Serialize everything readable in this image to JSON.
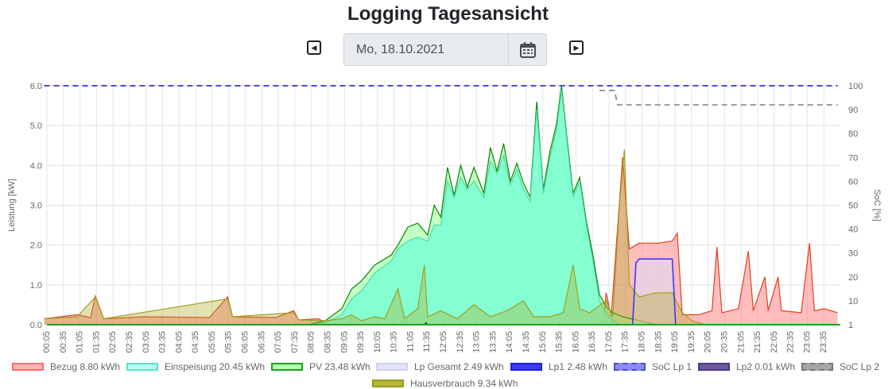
{
  "page": {
    "title": "Logging Tagesansicht",
    "date": "Mo, 18.10.2021",
    "prev_icon": "caret-left-square-icon",
    "next_icon": "caret-right-square-icon",
    "calendar_icon": "calendar-icon"
  },
  "chart_data": {
    "type": "area",
    "y_left_label": "Leistung [kW]",
    "y_right_label": "SoC [%]",
    "y_left_ticks": [
      "0.0",
      "1.0",
      "2.0",
      "3.0",
      "4.0",
      "5.0",
      "6.0"
    ],
    "y_left_range": [
      0,
      6
    ],
    "y_right_ticks": [
      "1",
      "10",
      "20",
      "30",
      "40",
      "50",
      "60",
      "70",
      "80",
      "90",
      "100"
    ],
    "y_right_range": [
      0,
      100
    ],
    "x_tick_labels": [
      "00:05",
      "00:35",
      "01:05",
      "01:35",
      "02:05",
      "02:35",
      "03:05",
      "03:35",
      "04:05",
      "04:35",
      "05:05",
      "05:35",
      "06:05",
      "06:35",
      "07:05",
      "07:35",
      "08:05",
      "08:35",
      "09:05",
      "09:35",
      "10:05",
      "10:35",
      "11:05",
      "11:35",
      "12:05",
      "12:35",
      "13:05",
      "13:35",
      "14:05",
      "14:35",
      "15:05",
      "15:35",
      "16:05",
      "16:35",
      "17:05",
      "17:35",
      "18:05",
      "18:35",
      "19:05",
      "19:35",
      "20:05",
      "20:35",
      "21:05",
      "21:35",
      "22:05",
      "22:35",
      "23:05",
      "23:35"
    ],
    "grid": true,
    "legend_position": "bottom",
    "series": [
      {
        "name": "Bezug 8.80 kWh",
        "color": "#ff6b6b",
        "kind": "area",
        "axis": "left",
        "points": [
          [
            0,
            0.15
          ],
          [
            1,
            0.25
          ],
          [
            1.4,
            0.18
          ],
          [
            1.55,
            0.72
          ],
          [
            1.8,
            0.15
          ],
          [
            3,
            0.2
          ],
          [
            5,
            0.18
          ],
          [
            5.55,
            0.7
          ],
          [
            5.7,
            0.2
          ],
          [
            7,
            0.18
          ],
          [
            7.55,
            0.35
          ],
          [
            7.7,
            0.12
          ],
          [
            8.3,
            0.15
          ],
          [
            8.6,
            0.0
          ],
          [
            9.2,
            0.0
          ],
          [
            9.3,
            0.25
          ],
          [
            9.4,
            0.0
          ],
          [
            10.8,
            0.0
          ],
          [
            10.9,
            0.35
          ],
          [
            11,
            0.0
          ],
          [
            16.9,
            0.0
          ],
          [
            17.0,
            0.8
          ],
          [
            17.15,
            0.2
          ],
          [
            17.5,
            4.2
          ],
          [
            17.7,
            1.9
          ],
          [
            18.0,
            2.05
          ],
          [
            18.6,
            2.05
          ],
          [
            19.0,
            2.1
          ],
          [
            19.15,
            2.3
          ],
          [
            19.3,
            0.25
          ],
          [
            19.8,
            0.25
          ],
          [
            20.0,
            0.3
          ],
          [
            20.2,
            0.35
          ],
          [
            20.35,
            1.95
          ],
          [
            20.5,
            0.3
          ],
          [
            21.0,
            0.4
          ],
          [
            21.3,
            1.85
          ],
          [
            21.45,
            0.35
          ],
          [
            21.8,
            1.2
          ],
          [
            21.9,
            0.35
          ],
          [
            22.2,
            1.2
          ],
          [
            22.3,
            0.35
          ],
          [
            22.9,
            0.3
          ],
          [
            23.15,
            2.05
          ],
          [
            23.3,
            0.35
          ],
          [
            23.6,
            0.4
          ],
          [
            24,
            0.3
          ]
        ]
      },
      {
        "name": "Einspeisung 20.45 kWh",
        "color": "#7fffd4",
        "kind": "area",
        "axis": "left",
        "points": [
          [
            8.0,
            0.0
          ],
          [
            8.5,
            0.05
          ],
          [
            9.0,
            0.25
          ],
          [
            9.3,
            0.65
          ],
          [
            9.6,
            0.85
          ],
          [
            10.0,
            1.3
          ],
          [
            10.5,
            1.6
          ],
          [
            10.7,
            1.9
          ],
          [
            11.0,
            2.1
          ],
          [
            11.3,
            2.2
          ],
          [
            11.6,
            2.1
          ],
          [
            11.8,
            2.5
          ],
          [
            12.0,
            2.5
          ],
          [
            12.2,
            3.6
          ],
          [
            12.4,
            3.2
          ],
          [
            12.6,
            3.7
          ],
          [
            12.8,
            3.4
          ],
          [
            13.0,
            3.6
          ],
          [
            13.3,
            3.2
          ],
          [
            13.5,
            4.1
          ],
          [
            13.7,
            3.8
          ],
          [
            13.9,
            4.25
          ],
          [
            14.1,
            3.5
          ],
          [
            14.3,
            3.9
          ],
          [
            14.5,
            3.4
          ],
          [
            14.7,
            3.1
          ],
          [
            14.9,
            5.4
          ],
          [
            15.0,
            4.4
          ],
          [
            15.1,
            3.3
          ],
          [
            15.3,
            4.2
          ],
          [
            15.5,
            4.9
          ],
          [
            15.65,
            5.9
          ],
          [
            15.8,
            4.7
          ],
          [
            16.0,
            3.2
          ],
          [
            16.2,
            3.6
          ],
          [
            16.4,
            2.5
          ],
          [
            16.6,
            1.6
          ],
          [
            16.8,
            0.6
          ],
          [
            17.0,
            0.3
          ],
          [
            17.2,
            0.1
          ],
          [
            17.4,
            0.0
          ]
        ]
      },
      {
        "name": "PV 23.48 kWh",
        "color": "#00a000",
        "kind": "area",
        "axis": "left",
        "points": [
          [
            8.0,
            0.0
          ],
          [
            8.5,
            0.1
          ],
          [
            9.0,
            0.4
          ],
          [
            9.3,
            0.9
          ],
          [
            9.6,
            1.1
          ],
          [
            10.0,
            1.5
          ],
          [
            10.5,
            1.75
          ],
          [
            10.7,
            2.0
          ],
          [
            11.0,
            2.45
          ],
          [
            11.3,
            2.55
          ],
          [
            11.6,
            2.25
          ],
          [
            11.8,
            3.0
          ],
          [
            12.0,
            2.7
          ],
          [
            12.2,
            3.95
          ],
          [
            12.4,
            3.25
          ],
          [
            12.6,
            4.0
          ],
          [
            12.8,
            3.45
          ],
          [
            13.0,
            3.95
          ],
          [
            13.3,
            3.3
          ],
          [
            13.5,
            4.45
          ],
          [
            13.7,
            3.85
          ],
          [
            13.9,
            4.55
          ],
          [
            14.1,
            3.6
          ],
          [
            14.3,
            4.05
          ],
          [
            14.5,
            3.55
          ],
          [
            14.7,
            3.2
          ],
          [
            14.9,
            5.6
          ],
          [
            15.0,
            4.5
          ],
          [
            15.1,
            3.4
          ],
          [
            15.3,
            4.35
          ],
          [
            15.5,
            5.05
          ],
          [
            15.65,
            6.0
          ],
          [
            15.8,
            4.8
          ],
          [
            16.0,
            3.3
          ],
          [
            16.2,
            3.7
          ],
          [
            16.4,
            2.6
          ],
          [
            16.6,
            1.75
          ],
          [
            16.8,
            0.75
          ],
          [
            17.0,
            0.45
          ],
          [
            17.2,
            0.3
          ],
          [
            17.5,
            0.2
          ],
          [
            18.0,
            0.1
          ],
          [
            18.5,
            0.0
          ]
        ]
      },
      {
        "name": "Lp Gesamt 2.49 kWh",
        "color": "#dcdcf5",
        "kind": "area",
        "axis": "left",
        "points": [
          [
            17.8,
            0.0
          ],
          [
            17.9,
            1.55
          ],
          [
            18.0,
            1.65
          ],
          [
            18.6,
            1.65
          ],
          [
            19.0,
            1.65
          ],
          [
            19.1,
            0.0
          ]
        ]
      },
      {
        "name": "Lp1 2.48 kWh",
        "color": "#0000ff",
        "kind": "line",
        "axis": "left",
        "points": [
          [
            17.8,
            0.0
          ],
          [
            17.9,
            1.55
          ],
          [
            18.0,
            1.65
          ],
          [
            18.6,
            1.65
          ],
          [
            19.0,
            1.65
          ],
          [
            19.1,
            0.0
          ]
        ]
      },
      {
        "name": "SoC Lp 1",
        "color": "#4b4bd8",
        "kind": "dashed",
        "axis": "right",
        "points": [
          [
            0,
            100
          ],
          [
            24,
            100
          ]
        ]
      },
      {
        "name": "Lp2 0.01 kWh",
        "color": "#4b3a80",
        "kind": "line",
        "axis": "left",
        "points": [
          [
            11.5,
            0.0
          ],
          [
            11.55,
            0.05
          ],
          [
            11.6,
            0.0
          ]
        ]
      },
      {
        "name": "SoC Lp 2",
        "color": "#999999",
        "kind": "dashed",
        "axis": "right",
        "points": [
          [
            16.8,
            98
          ],
          [
            17.25,
            98
          ],
          [
            17.35,
            92
          ],
          [
            24,
            92
          ]
        ]
      },
      {
        "name": "Hausverbrauch 9.34 kWh",
        "color": "#a0a020",
        "kind": "area",
        "axis": "left",
        "points": [
          [
            0,
            0.15
          ],
          [
            1,
            0.2
          ],
          [
            1.55,
            0.7
          ],
          [
            1.8,
            0.15
          ],
          [
            5.55,
            0.65
          ],
          [
            5.7,
            0.2
          ],
          [
            7.55,
            0.3
          ],
          [
            7.7,
            0.12
          ],
          [
            8.5,
            0.1
          ],
          [
            9.0,
            0.15
          ],
          [
            9.3,
            0.25
          ],
          [
            9.6,
            0.1
          ],
          [
            10.0,
            0.2
          ],
          [
            10.3,
            0.15
          ],
          [
            10.7,
            0.9
          ],
          [
            10.9,
            0.15
          ],
          [
            11.3,
            0.4
          ],
          [
            11.5,
            1.5
          ],
          [
            11.6,
            0.2
          ],
          [
            12.0,
            0.35
          ],
          [
            12.5,
            0.15
          ],
          [
            13.0,
            0.5
          ],
          [
            13.5,
            0.2
          ],
          [
            14.0,
            0.35
          ],
          [
            14.5,
            0.6
          ],
          [
            14.8,
            0.2
          ],
          [
            15.3,
            0.2
          ],
          [
            15.7,
            0.3
          ],
          [
            16.0,
            1.5
          ],
          [
            16.2,
            0.4
          ],
          [
            16.5,
            0.3
          ],
          [
            17.0,
            0.6
          ],
          [
            17.2,
            0.2
          ],
          [
            17.4,
            3.0
          ],
          [
            17.55,
            4.4
          ],
          [
            17.7,
            1.0
          ],
          [
            18.0,
            0.7
          ],
          [
            18.5,
            0.8
          ],
          [
            19.0,
            0.8
          ],
          [
            19.3,
            0.3
          ],
          [
            19.6,
            0.1
          ],
          [
            20,
            0.0
          ]
        ]
      }
    ]
  },
  "legend": [
    {
      "label": "Bezug 8.80 kWh",
      "fill": "#ffb3b3",
      "border": "#ff6b6b",
      "style": "solid"
    },
    {
      "label": "Einspeisung 20.45 kWh",
      "fill": "#b3fff0",
      "border": "#5fe0c8",
      "style": "solid"
    },
    {
      "label": "PV 23.48 kWh",
      "fill": "#b3ffb3",
      "border": "#20a020",
      "style": "solid"
    },
    {
      "label": "Lp Gesamt 2.49 kWh",
      "fill": "#e4e4f7",
      "border": "#cfcfee",
      "style": "solid"
    },
    {
      "label": "Lp1 2.48 kWh",
      "fill": "#3a3aff",
      "border": "#2020e0",
      "style": "solid"
    },
    {
      "label": "SoC Lp 1",
      "fill": "#8c8cf5",
      "border": "#4b4bd8",
      "style": "dashed"
    },
    {
      "label": "Lp2 0.01 kWh",
      "fill": "#6e5a9a",
      "border": "#4b3a80",
      "style": "solid"
    },
    {
      "label": "SoC Lp 2",
      "fill": "#a6a6a6",
      "border": "#777777",
      "style": "dashed"
    },
    {
      "label": "Hausverbrauch 9.34 kWh",
      "fill": "#b5b53a",
      "border": "#9a9a20",
      "style": "solid"
    }
  ]
}
